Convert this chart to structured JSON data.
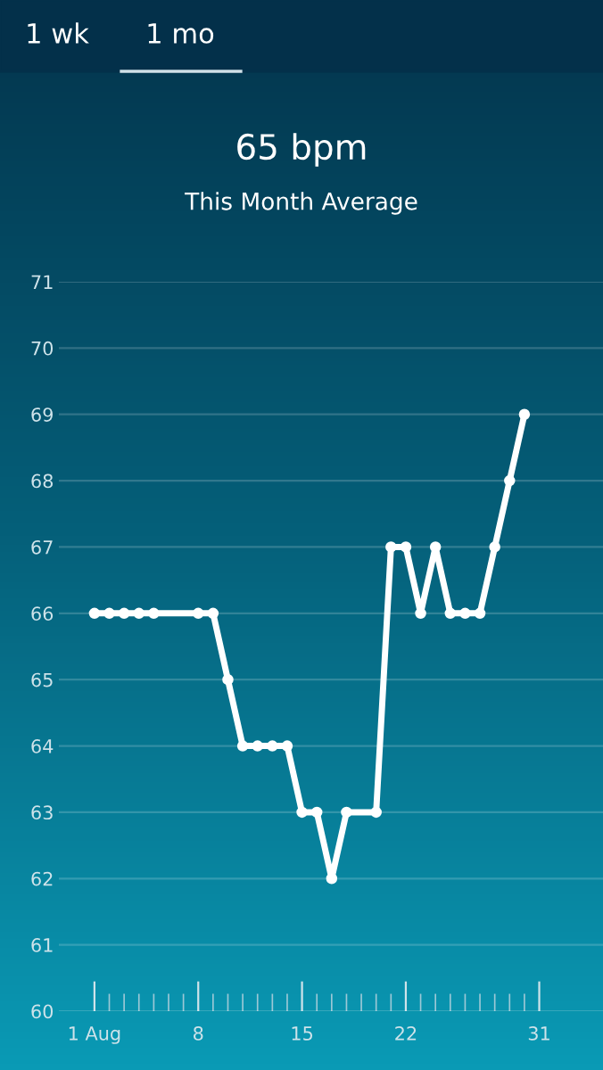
{
  "chart_data": {
    "type": "line",
    "title": "65 bpm",
    "subtitle": "This Month Average",
    "annotations": [
      "1 wk",
      "1 mo"
    ],
    "x": [
      1,
      2,
      3,
      4,
      5,
      8,
      9,
      10,
      11,
      12,
      13,
      14,
      15,
      16,
      17,
      18,
      20,
      21,
      22,
      23,
      24,
      25,
      26,
      27,
      28,
      29,
      30
    ],
    "series": [
      {
        "color": "#ffffff",
        "values": [
          66,
          66,
          66,
          66,
          66,
          66,
          66,
          65,
          64,
          64,
          64,
          64,
          63,
          63,
          62,
          63,
          63,
          67,
          67,
          66,
          67,
          66,
          66,
          66,
          67,
          68,
          69
        ]
      }
    ],
    "xlim": [
      -1.4,
      35.3
    ],
    "xticks": [
      {
        "value": 1,
        "label": "1 Aug"
      },
      8,
      15,
      22,
      31
    ],
    "ylim": [
      60,
      71
    ],
    "yticks": [
      60,
      61,
      62,
      63,
      64,
      65,
      66,
      67,
      68,
      69,
      70,
      71
    ],
    "grid": "y",
    "marker": "circle",
    "line_style": "solid",
    "legend": false
  }
}
